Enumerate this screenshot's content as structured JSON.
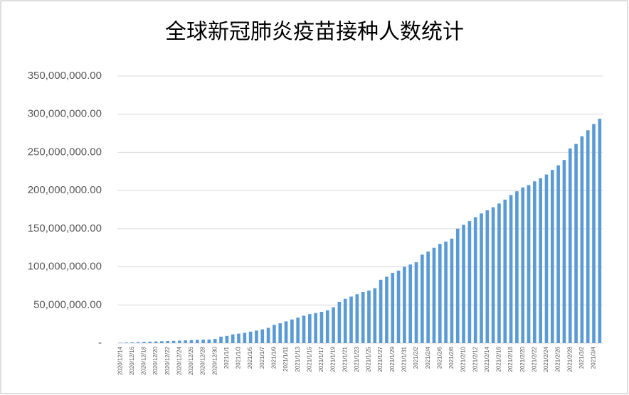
{
  "chart_data": {
    "type": "bar",
    "title": "全球新冠肺炎疫苗接种人数统计",
    "categories": [
      "2020/12/14",
      null,
      "2020/12/16",
      null,
      "2020/12/18",
      null,
      "2020/12/20",
      null,
      "2020/12/22",
      null,
      "2020/12/24",
      null,
      "2020/12/26",
      null,
      "2020/12/28",
      null,
      "2020/12/30",
      null,
      "2021/1/1",
      null,
      "2021/1/3",
      null,
      "2021/1/5",
      null,
      "2021/1/7",
      null,
      "2021/1/9",
      null,
      "2021/1/11",
      null,
      "2021/1/13",
      null,
      "2021/1/15",
      null,
      "2021/1/17",
      null,
      "2021/1/19",
      null,
      "2021/1/21",
      null,
      "2021/1/23",
      null,
      "2021/1/25",
      null,
      "2021/1/27",
      null,
      "2021/1/29",
      null,
      "2021/1/31",
      null,
      "2021/2/2",
      null,
      "2021/2/4",
      null,
      "2021/2/6",
      null,
      "2021/2/8",
      null,
      "2021/2/10",
      null,
      "2021/2/12",
      null,
      "2021/2/14",
      null,
      "2021/2/16",
      null,
      "2021/2/18",
      null,
      "2021/2/20",
      null,
      "2021/2/22",
      null,
      "2021/2/24",
      null,
      "2021/2/26",
      null,
      "2021/2/28",
      null,
      "2021/3/2",
      null,
      "2021/3/4",
      null
    ],
    "values": [
      500000,
      800000,
      1000000,
      1300000,
      1600000,
      1900000,
      2200000,
      2500000,
      2800000,
      3000000,
      3300000,
      3600000,
      4000000,
      4300000,
      4600000,
      4800000,
      5500000,
      8500000,
      9500000,
      11500000,
      12500000,
      13500000,
      15000000,
      16500000,
      18000000,
      20000000,
      24000000,
      26000000,
      28500000,
      31000000,
      33500000,
      36000000,
      38000000,
      39500000,
      41000000,
      43000000,
      47000000,
      54000000,
      58000000,
      61000000,
      64000000,
      67000000,
      69000000,
      72000000,
      83000000,
      87000000,
      92000000,
      95000000,
      100000000,
      103000000,
      106000000,
      116000000,
      120000000,
      125000000,
      130000000,
      133000000,
      137000000,
      150000000,
      155000000,
      160000000,
      165000000,
      170000000,
      174000000,
      178000000,
      183000000,
      188000000,
      194000000,
      199000000,
      204000000,
      207000000,
      212000000,
      216000000,
      221000000,
      227000000,
      233000000,
      240000000,
      255000000,
      261000000,
      271000000,
      279000000,
      287000000,
      294000000
    ],
    "color": "#5b9bd5",
    "ylim": [
      0,
      350000000
    ],
    "yticks": [
      {
        "value": 0,
        "label": "-"
      },
      {
        "value": 50000000,
        "label": "50,000,000.00"
      },
      {
        "value": 100000000,
        "label": "100,000,000.00"
      },
      {
        "value": 150000000,
        "label": "150,000,000.00"
      },
      {
        "value": 200000000,
        "label": "200,000,000.00"
      },
      {
        "value": 250000000,
        "label": "250,000,000.00"
      },
      {
        "value": 300000000,
        "label": "300,000,000.00"
      },
      {
        "value": 350000000,
        "label": "350,000,000.00"
      }
    ],
    "grid": true
  }
}
